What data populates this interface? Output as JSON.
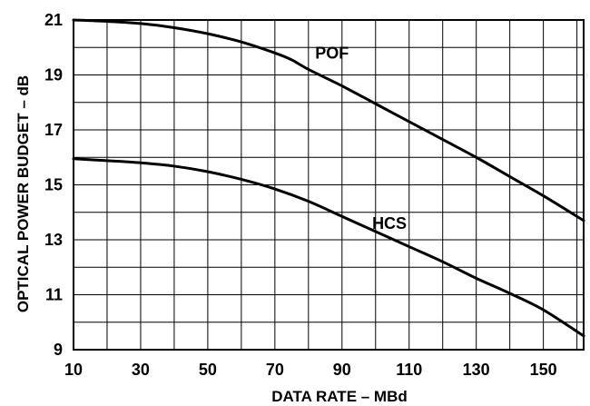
{
  "chart_data": {
    "type": "line",
    "xlabel": "DATA RATE – MBd",
    "ylabel": "OPTICAL POWER BUDGET – dB",
    "xlim": [
      10,
      162
    ],
    "ylim": [
      9,
      21
    ],
    "x_ticks": [
      10,
      30,
      50,
      70,
      90,
      110,
      130,
      150
    ],
    "x_tick_labels": [
      "10",
      "30",
      "50",
      "70",
      "90",
      "110",
      "130",
      "150"
    ],
    "y_ticks": [
      9,
      11,
      13,
      15,
      17,
      19,
      21
    ],
    "y_tick_labels": [
      "9",
      "11",
      "13",
      "15",
      "17",
      "19",
      "21"
    ],
    "x_minor_step": 10,
    "y_minor_step": 1,
    "grid": true,
    "series": [
      {
        "name": "POF",
        "x": [
          10,
          20,
          30,
          40,
          50,
          60,
          70,
          75,
          80,
          90,
          100,
          110,
          120,
          130,
          140,
          150,
          162
        ],
        "y": [
          21.0,
          20.95,
          20.87,
          20.72,
          20.5,
          20.2,
          19.8,
          19.55,
          19.2,
          18.6,
          17.95,
          17.3,
          16.65,
          16.0,
          15.3,
          14.6,
          13.7
        ],
        "label_at": [
          82,
          19.6
        ]
      },
      {
        "name": "HCS",
        "x": [
          10,
          20,
          30,
          40,
          50,
          60,
          70,
          80,
          90,
          100,
          110,
          120,
          130,
          140,
          150,
          162
        ],
        "y": [
          15.95,
          15.88,
          15.8,
          15.68,
          15.48,
          15.2,
          14.85,
          14.4,
          13.85,
          13.3,
          12.75,
          12.2,
          11.6,
          11.05,
          10.45,
          9.5
        ],
        "label_at": [
          99,
          13.4
        ]
      }
    ]
  }
}
